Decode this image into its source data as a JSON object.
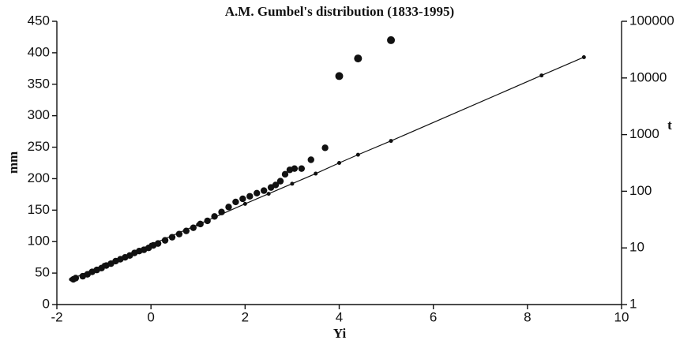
{
  "chart_data": {
    "type": "scatter",
    "title": "A.M. Gumbel's distribution  (1833-1995)",
    "x_label": "Yi",
    "y_label": "mm",
    "y2_label": "t",
    "xlim": [
      -2,
      10
    ],
    "xticks": [
      -2,
      0,
      2,
      4,
      6,
      8,
      10
    ],
    "ylim": [
      0,
      450
    ],
    "yticks": [
      0,
      50,
      100,
      150,
      200,
      250,
      300,
      350,
      400,
      450
    ],
    "y2lim": [
      1,
      100000
    ],
    "y2ticks": [
      1,
      10,
      100,
      1000,
      10000,
      100000
    ],
    "y2_log": true,
    "series": [
      {
        "color": "#111111",
        "x": [
          -1.65,
          -1.6,
          -1.45,
          -1.35,
          -1.25,
          -1.15,
          -1.05,
          -0.95,
          -0.85,
          -0.75,
          -0.65,
          -0.55,
          -0.45,
          -0.35,
          -0.25,
          -0.15,
          -0.05,
          0.05,
          0.15,
          0.3,
          0.45,
          0.6,
          0.75,
          0.9,
          1.05,
          1.2,
          1.35,
          1.5,
          1.65,
          1.8,
          1.95,
          2.1,
          2.25,
          2.4,
          2.55,
          2.65,
          2.75,
          2.85,
          2.95,
          3.05,
          3.2,
          3.4,
          3.7,
          4.0,
          4.4,
          5.1
        ],
        "values": [
          40,
          42,
          45,
          48,
          52,
          55,
          58,
          62,
          65,
          69,
          72,
          75,
          78,
          82,
          85,
          87,
          90,
          94,
          97,
          102,
          107,
          112,
          117,
          122,
          128,
          133,
          140,
          147,
          155,
          163,
          168,
          172,
          177,
          181,
          186,
          190,
          196,
          207,
          214,
          216,
          216,
          230,
          249,
          363,
          391,
          420
        ]
      },
      {
        "color": "#111111",
        "line": true,
        "x": [
          -1.7,
          -1,
          0,
          1,
          2,
          2.5,
          3,
          3.5,
          4,
          4.4,
          5.1,
          8.3,
          9.2
        ],
        "values": [
          40,
          63,
          95,
          127,
          160,
          176,
          192,
          208,
          225,
          238,
          260,
          364,
          393
        ]
      }
    ]
  }
}
